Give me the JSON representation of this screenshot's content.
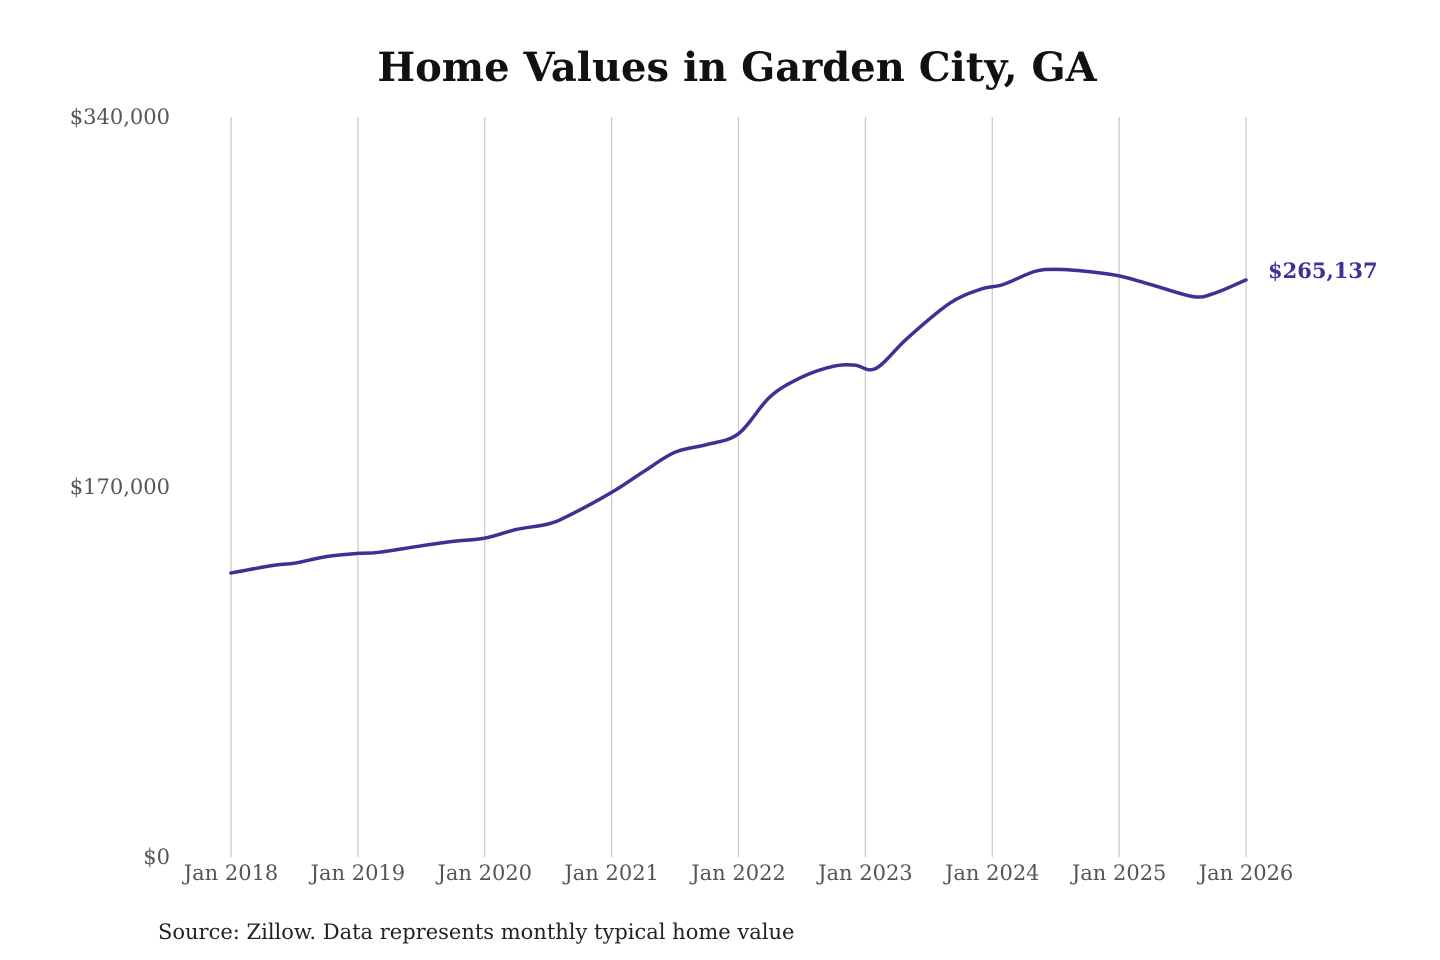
{
  "chart_data": {
    "type": "line",
    "title": "Home Values in Garden City, GA",
    "source": "Source: Zillow. Data represents monthly typical home value",
    "xlabel": "",
    "ylabel": "",
    "ylim": [
      0,
      340000
    ],
    "y_ticks": [
      0,
      170000,
      340000
    ],
    "y_tick_labels": [
      "$0",
      "$170,000",
      "$340,000"
    ],
    "x_range": [
      "2018-01",
      "2026-01"
    ],
    "x_ticks": [
      "2018-01",
      "2019-01",
      "2020-01",
      "2021-01",
      "2022-01",
      "2023-01",
      "2024-01",
      "2025-01",
      "2026-01"
    ],
    "x_tick_labels": [
      "Jan 2018",
      "Jan 2019",
      "Jan 2020",
      "Jan 2021",
      "Jan 2022",
      "Jan 2023",
      "Jan 2024",
      "Jan 2025",
      "Jan 2026"
    ],
    "grid": "vertical",
    "line_color": "#3a3294",
    "end_label": "$265,137",
    "x": [
      "2018-01",
      "2018-05",
      "2018-07",
      "2018-10",
      "2019-01",
      "2019-03",
      "2019-07",
      "2019-10",
      "2020-01",
      "2020-04",
      "2020-07",
      "2020-09",
      "2021-01",
      "2021-04",
      "2021-07",
      "2021-10",
      "2022-01",
      "2022-04",
      "2022-07",
      "2022-10",
      "2022-12",
      "2023-02",
      "2023-05",
      "2023-09",
      "2023-12",
      "2024-02",
      "2024-05",
      "2024-07",
      "2024-10",
      "2025-01",
      "2025-04",
      "2025-08",
      "2025-10",
      "2026-01"
    ],
    "values": [
      130500,
      134000,
      135000,
      138000,
      139500,
      140000,
      143000,
      145000,
      146500,
      150500,
      153000,
      157000,
      167500,
      177000,
      186000,
      189500,
      194500,
      211500,
      220500,
      225500,
      226000,
      224500,
      238500,
      254500,
      261000,
      263000,
      269000,
      270000,
      269000,
      267000,
      263000,
      257500,
      259000,
      265137
    ]
  }
}
